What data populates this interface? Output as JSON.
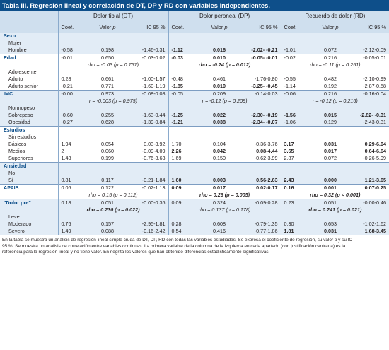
{
  "title": "Tabla III. Regresión lineal y correlación de DT, DP y RD con variables independientes.",
  "groups": [
    "Dolor tibial (DT)",
    "Dolor peroneal (DP)",
    "Recuerdo de dolor (RD)"
  ],
  "cols": {
    "coef": "Coef.",
    "p_prefix": "Valor ",
    "p_var": "p",
    "ic": "IC 95 %"
  },
  "rows": [
    {
      "label": "Sexo",
      "section": true,
      "cells": [
        [
          "",
          "",
          "",
          ""
        ],
        [
          "",
          "",
          "",
          ""
        ],
        [
          "",
          "",
          "",
          ""
        ]
      ]
    },
    {
      "label": "Mujer",
      "cells": [
        [
          "",
          "",
          ""
        ],
        [
          "",
          "",
          ""
        ],
        [
          "",
          "",
          ""
        ]
      ]
    },
    {
      "label": "Hombre",
      "cells": [
        [
          "-0.58",
          "0.198",
          "-1.46-0.31"
        ],
        [
          "-1.12",
          "0.016",
          "-2.02- -0.21"
        ],
        [
          "-1.01",
          "0.072",
          "-2.12-0.09"
        ]
      ],
      "bold": [
        false,
        true,
        false
      ]
    },
    {
      "label": "Edad",
      "section": true,
      "cells": [
        [
          "-0.01",
          "0.650",
          "-0.03-0.02"
        ],
        [
          "-0.03",
          "0.010",
          "-0.05- -0.01"
        ],
        [
          "-0.02",
          "0.216",
          "-0.05-0.01"
        ]
      ],
      "bold": [
        false,
        true,
        false
      ]
    },
    {
      "rho": true,
      "cells": [
        "rho = -0.03 (p = 0.757)",
        "rho = -0.24 (p = 0.012)",
        "rho = -0.11 (p = 0.251)"
      ],
      "bold": [
        false,
        true,
        false
      ]
    },
    {
      "label": "Adolescente",
      "cells": [
        [
          "",
          "",
          ""
        ],
        [
          "",
          "",
          ""
        ],
        [
          "",
          "",
          ""
        ]
      ]
    },
    {
      "label": "Adulto",
      "cells": [
        [
          "0.28",
          "0.661",
          "-1.00-1.57"
        ],
        [
          "-0.48",
          "0.461",
          "-1.76-0.80"
        ],
        [
          "-0.55",
          "0.482",
          "-2.10-0.99"
        ]
      ],
      "bold": [
        false,
        false,
        false
      ]
    },
    {
      "label": "Adulto senior",
      "cells": [
        [
          "-0.21",
          "0.771",
          "-1.60-1.19"
        ],
        [
          "-1.85",
          "0.010",
          "-3.25- -0.45"
        ],
        [
          "-1.14",
          "0.192",
          "-2.87-0.58"
        ]
      ],
      "bold": [
        false,
        true,
        false
      ]
    },
    {
      "label": "IMC",
      "section": true,
      "cells": [
        [
          "-0.00",
          "0.973",
          "-0.08-0.08"
        ],
        [
          "-0.05",
          "0.209",
          "-0.14-0.03"
        ],
        [
          "-0.06",
          "0.216",
          "-0.16-0.04"
        ]
      ],
      "bold": [
        false,
        false,
        false
      ]
    },
    {
      "rho": true,
      "cells": [
        "r = -0.003 (p = 0.975)",
        "r = -0.12 (p = 0.209)",
        "r = -0.12 (p = 0.216)"
      ],
      "bold": [
        false,
        false,
        false
      ]
    },
    {
      "label": "Normopeso",
      "cells": [
        [
          "",
          "",
          ""
        ],
        [
          "",
          "",
          ""
        ],
        [
          "",
          "",
          ""
        ]
      ]
    },
    {
      "label": "Sobrepeso",
      "cells": [
        [
          "-0.60",
          "0.255",
          "-1.63-0.44"
        ],
        [
          "-1.25",
          "0.022",
          "-2.30- -0.19"
        ],
        [
          "-1.56",
          "0.015",
          "-2.82- -0.31"
        ]
      ],
      "bold": [
        false,
        true,
        true
      ]
    },
    {
      "label": "Obesidad",
      "cells": [
        [
          "-0.27",
          "0.628",
          "-1.39-0.84"
        ],
        [
          "-1.21",
          "0.038",
          "-2.34- -0.07"
        ],
        [
          "-1.06",
          "0.129",
          "-2.43-0.31"
        ]
      ],
      "bold": [
        false,
        true,
        false
      ]
    },
    {
      "label": "Estudios",
      "section": true,
      "cells": [
        [
          "",
          "",
          ""
        ],
        [
          "",
          "",
          ""
        ],
        [
          "",
          "",
          ""
        ]
      ]
    },
    {
      "label": "Sin estudios",
      "cells": [
        [
          "",
          "",
          ""
        ],
        [
          "",
          "",
          ""
        ],
        [
          "",
          "",
          ""
        ]
      ]
    },
    {
      "label": "Básicos",
      "cells": [
        [
          "1.94",
          "0.054",
          "0.03-3.92"
        ],
        [
          "1.70",
          "0.104",
          "-0.36-3.76"
        ],
        [
          "3.17",
          "0.031",
          "0.29-6.04"
        ]
      ],
      "bold": [
        false,
        false,
        true
      ]
    },
    {
      "label": "Medios",
      "cells": [
        [
          "2",
          "0.060",
          "-0.09-4.09"
        ],
        [
          "2.26",
          "0.042",
          "0.08-4.44"
        ],
        [
          "3.65",
          "0.017",
          "0.64-6.64"
        ]
      ],
      "bold": [
        false,
        true,
        true
      ]
    },
    {
      "label": "Superiores",
      "cells": [
        [
          "1.43",
          "0.199",
          "-0.76-3.63"
        ],
        [
          "1.69",
          "0.150",
          "-0.62-3.99"
        ],
        [
          "2.87",
          "0.072",
          "-0.26-5.99"
        ]
      ],
      "bold": [
        false,
        false,
        false
      ]
    },
    {
      "label": "Ansiedad",
      "section": true,
      "cells": [
        [
          "",
          "",
          ""
        ],
        [
          "",
          "",
          ""
        ],
        [
          "",
          "",
          ""
        ]
      ]
    },
    {
      "label": "No",
      "cells": [
        [
          "",
          "",
          ""
        ],
        [
          "",
          "",
          ""
        ],
        [
          "",
          "",
          ""
        ]
      ]
    },
    {
      "label": "Sí",
      "cells": [
        [
          "0.81",
          "0.117",
          "-0.21-1.84"
        ],
        [
          "1.60",
          "0.003",
          "0.56-2.63"
        ],
        [
          "2.43",
          "0.000",
          "1.21-3.65"
        ]
      ],
      "bold": [
        false,
        true,
        true
      ]
    },
    {
      "label": "APAIS",
      "section": true,
      "cells": [
        [
          "0.06",
          "0.122",
          "-0.02-1.13"
        ],
        [
          "0.09",
          "0.017",
          "0.02-0.17"
        ],
        [
          "0.16",
          "0.001",
          "0.07-0.25"
        ]
      ],
      "bold": [
        false,
        true,
        true
      ]
    },
    {
      "rho": true,
      "cells": [
        "rho = 0.15 (p = 0.112)",
        "rho = 0.26 (p = 0.005)",
        "rho = 0.32 (p < 0.001)"
      ],
      "bold": [
        false,
        true,
        true
      ]
    },
    {
      "label": "\"Dolor pre\"",
      "section": true,
      "cells": [
        [
          "0.18",
          "0.051",
          "-0.00-0.36"
        ],
        [
          "0.09",
          "0.324",
          "-0.09-0.28"
        ],
        [
          "0.23",
          "0.051",
          "-0.00-0.46"
        ]
      ],
      "bold": [
        false,
        false,
        false
      ]
    },
    {
      "rho": true,
      "cells": [
        "rho = 0.230 (p = 0.022)",
        "rho = 0.137 (p = 0.178)",
        "rho = 0.241 (p = 0.021)"
      ],
      "bold": [
        true,
        false,
        true
      ]
    },
    {
      "label": "Leve",
      "cells": [
        [
          "",
          "",
          ""
        ],
        [
          "",
          "",
          ""
        ],
        [
          "",
          "",
          ""
        ]
      ]
    },
    {
      "label": "Moderado",
      "cells": [
        [
          "0.76",
          "0.157",
          "-2.95-1.81"
        ],
        [
          "0.28",
          "0.608",
          "-0.79-1.35"
        ],
        [
          "0.30",
          "0.653",
          "-1.02-1.62"
        ]
      ],
      "bold": [
        false,
        false,
        false
      ]
    },
    {
      "label": "Severo",
      "cells": [
        [
          "1.49",
          "0.088",
          "-0.16-2.42"
        ],
        [
          "0.54",
          "0.416",
          "-0.77-1.86"
        ],
        [
          "1.81",
          "0.031",
          "1.68-3.45"
        ]
      ],
      "bold": [
        false,
        false,
        true
      ]
    }
  ],
  "notes": [
    "En la tabla se muestra un análisis de regresión lineal simple cruda de DT, DP, RD con todas las variables estudiadas. Se expresa el coeficiente de regresión, su valor p y su IC",
    "95 %. Se muestra un análisis de correlación entre variables continuas. La primera variable de la columna de la izquierda en cada apartado (con justificación centrada) es la",
    "referencia para la regresión lineal y no tiene valor. En negrita los valores que han obtenido diferencias estadísticamente significativas."
  ]
}
